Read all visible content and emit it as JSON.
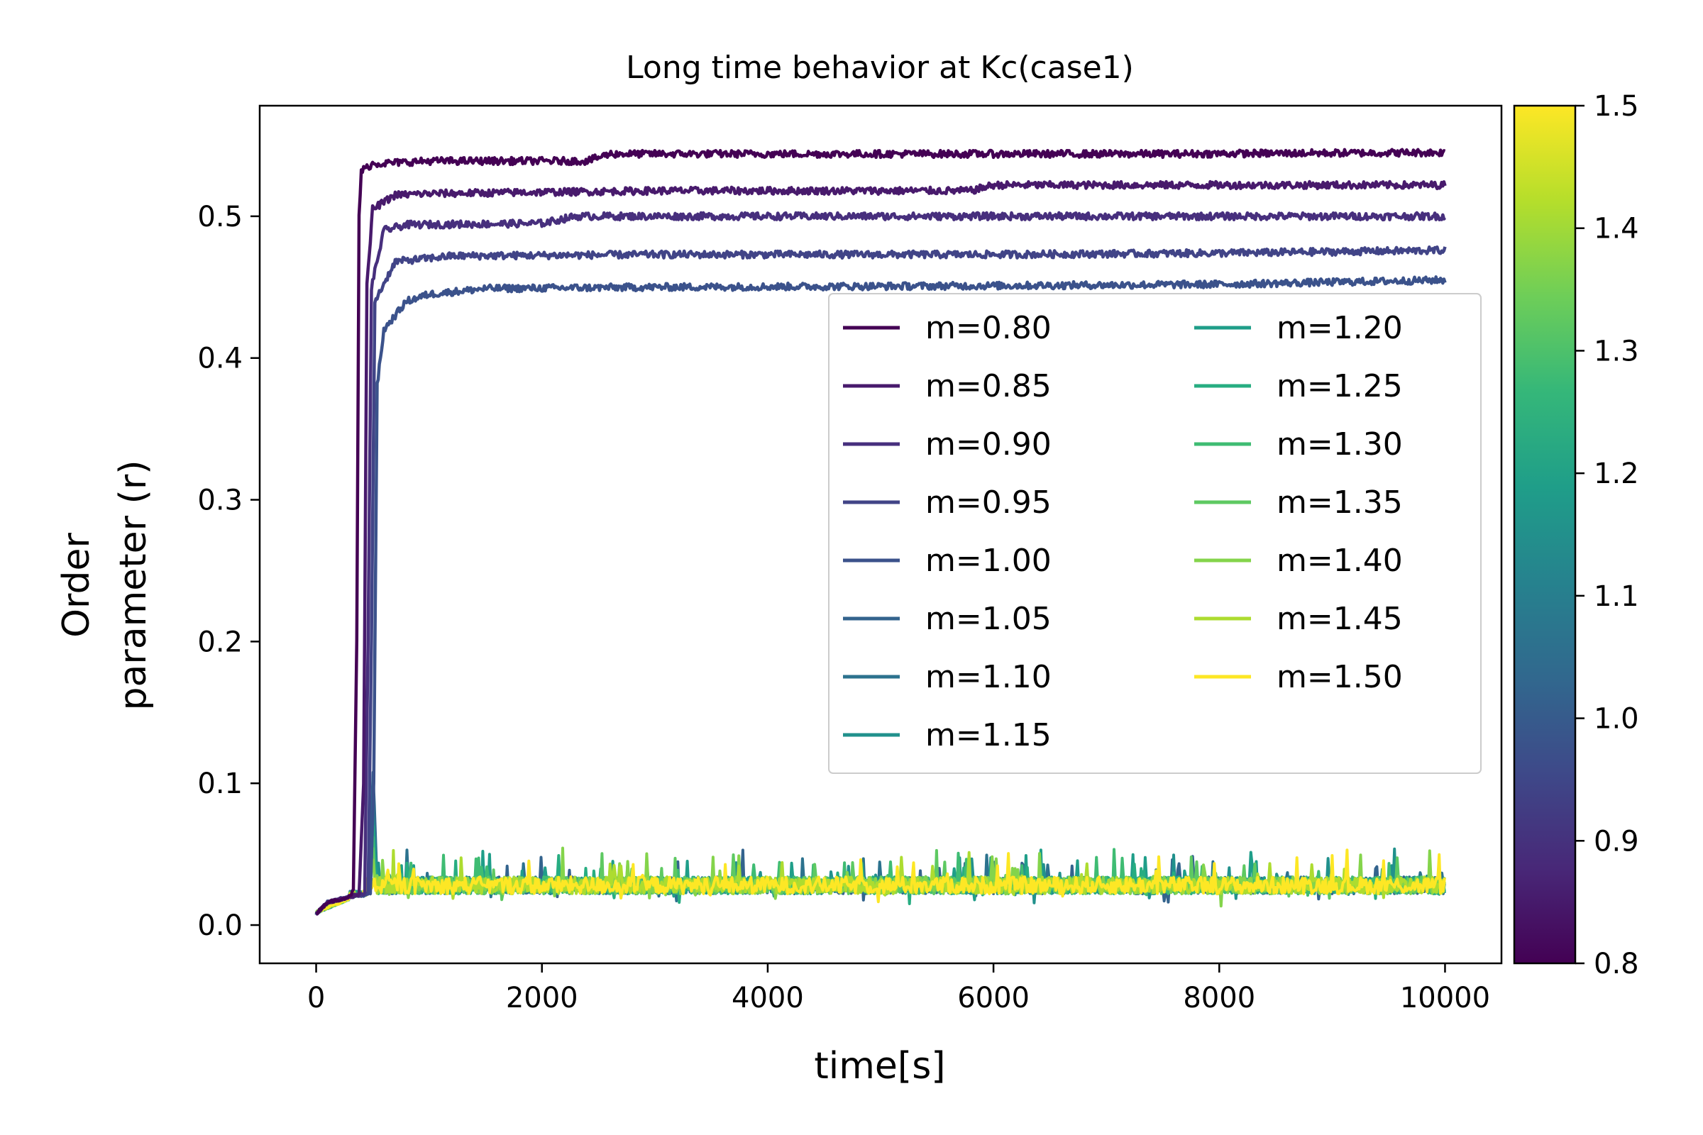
{
  "chart_data": {
    "type": "line",
    "title": "Long time behavior at Kc(case1)",
    "xlabel": "time[s]",
    "ylabel": [
      "Order",
      "parameter (r)"
    ],
    "xlim": [
      -500,
      10500
    ],
    "ylim": [
      -0.027,
      0.578
    ],
    "xticks": [
      0,
      2000,
      4000,
      6000,
      8000,
      10000
    ],
    "yticks": [
      0.0,
      0.1,
      0.2,
      0.3,
      0.4,
      0.5
    ],
    "xtick_labels": [
      "0",
      "2000",
      "4000",
      "6000",
      "8000",
      "10000"
    ],
    "ytick_labels": [
      "0.0",
      "0.1",
      "0.2",
      "0.3",
      "0.4",
      "0.5"
    ],
    "grid": false,
    "legend": {
      "placement": "center-right",
      "columns": 2
    },
    "colorbar": {
      "colormap": "viridis",
      "range": [
        0.8,
        1.5
      ],
      "ticks": [
        0.8,
        0.9,
        1.0,
        1.1,
        1.2,
        1.3,
        1.4,
        1.5
      ],
      "tick_labels": [
        "0.8",
        "0.9",
        "1.0",
        "1.1",
        "1.2",
        "1.3",
        "1.4",
        "1.5"
      ],
      "colors": [
        "#440154",
        "#482878",
        "#3e4989",
        "#31688e",
        "#26828e",
        "#1f9e89",
        "#35b779",
        "#6ece58",
        "#b5de2b",
        "#fde725"
      ]
    },
    "series": [
      {
        "name": "m=0.80",
        "m": 0.8,
        "color": "#440154",
        "points": [
          [
            0,
            0.008
          ],
          [
            100,
            0.016
          ],
          [
            200,
            0.018
          ],
          [
            300,
            0.02
          ],
          [
            330,
            0.025
          ],
          [
            360,
            0.2
          ],
          [
            380,
            0.5
          ],
          [
            400,
            0.532
          ],
          [
            500,
            0.537
          ],
          [
            1000,
            0.539
          ],
          [
            2400,
            0.539
          ],
          [
            2600,
            0.544
          ],
          [
            5000,
            0.544
          ],
          [
            7500,
            0.544
          ],
          [
            10000,
            0.545
          ]
        ]
      },
      {
        "name": "m=0.85",
        "m": 0.85,
        "color": "#481a6c",
        "points": [
          [
            0,
            0.008
          ],
          [
            100,
            0.016
          ],
          [
            200,
            0.018
          ],
          [
            300,
            0.02
          ],
          [
            380,
            0.022
          ],
          [
            420,
            0.1
          ],
          [
            450,
            0.45
          ],
          [
            500,
            0.505
          ],
          [
            700,
            0.515
          ],
          [
            1000,
            0.516
          ],
          [
            3000,
            0.518
          ],
          [
            5800,
            0.518
          ],
          [
            6000,
            0.522
          ],
          [
            8000,
            0.522
          ],
          [
            10000,
            0.522
          ]
        ]
      },
      {
        "name": "m=0.90",
        "m": 0.9,
        "color": "#472f7d",
        "points": [
          [
            0,
            0.008
          ],
          [
            100,
            0.016
          ],
          [
            200,
            0.018
          ],
          [
            300,
            0.02
          ],
          [
            430,
            0.022
          ],
          [
            460,
            0.2
          ],
          [
            490,
            0.45
          ],
          [
            600,
            0.49
          ],
          [
            800,
            0.494
          ],
          [
            2000,
            0.495
          ],
          [
            2300,
            0.5
          ],
          [
            5000,
            0.5
          ],
          [
            8000,
            0.5
          ],
          [
            10000,
            0.5
          ]
        ]
      },
      {
        "name": "m=0.95",
        "m": 0.95,
        "color": "#414487",
        "points": [
          [
            0,
            0.008
          ],
          [
            100,
            0.016
          ],
          [
            200,
            0.018
          ],
          [
            300,
            0.02
          ],
          [
            460,
            0.022
          ],
          [
            490,
            0.2
          ],
          [
            520,
            0.44
          ],
          [
            700,
            0.468
          ],
          [
            1200,
            0.472
          ],
          [
            3000,
            0.473
          ],
          [
            6000,
            0.473
          ],
          [
            8000,
            0.474
          ],
          [
            10000,
            0.476
          ]
        ]
      },
      {
        "name": "m=1.00",
        "m": 1.0,
        "color": "#3b528b",
        "points": [
          [
            0,
            0.008
          ],
          [
            100,
            0.016
          ],
          [
            200,
            0.018
          ],
          [
            300,
            0.02
          ],
          [
            480,
            0.022
          ],
          [
            510,
            0.1
          ],
          [
            540,
            0.38
          ],
          [
            600,
            0.42
          ],
          [
            800,
            0.44
          ],
          [
            1000,
            0.445
          ],
          [
            1500,
            0.449
          ],
          [
            3000,
            0.45
          ],
          [
            6000,
            0.451
          ],
          [
            8000,
            0.452
          ],
          [
            10000,
            0.455
          ]
        ]
      },
      {
        "name": "m=1.05",
        "m": 1.05,
        "color": "#33638d",
        "points": []
      },
      {
        "name": "m=1.10",
        "m": 1.1,
        "color": "#2c728e",
        "points": []
      },
      {
        "name": "m=1.15",
        "m": 1.15,
        "color": "#21918c",
        "points": []
      },
      {
        "name": "m=1.20",
        "m": 1.2,
        "color": "#1f9e89",
        "points": []
      },
      {
        "name": "m=1.25",
        "m": 1.25,
        "color": "#27ad81",
        "points": []
      },
      {
        "name": "m=1.30",
        "m": 1.3,
        "color": "#3fbc73",
        "points": []
      },
      {
        "name": "m=1.35",
        "m": 1.35,
        "color": "#5ec962",
        "points": []
      },
      {
        "name": "m=1.40",
        "m": 1.4,
        "color": "#84d44b",
        "points": []
      },
      {
        "name": "m=1.45",
        "m": 1.45,
        "color": "#addc30",
        "points": []
      },
      {
        "name": "m=1.50",
        "m": 1.5,
        "color": "#fde725",
        "points": []
      }
    ],
    "noise_band": {
      "series": [
        "m=1.05",
        "m=1.10",
        "m=1.15",
        "m=1.20",
        "m=1.25",
        "m=1.30",
        "m=1.35",
        "m=1.40",
        "m=1.45",
        "m=1.50"
      ],
      "mean": 0.028,
      "range": [
        0.018,
        0.05
      ],
      "transient_peak": {
        "x": 500,
        "y": 0.11
      }
    }
  }
}
